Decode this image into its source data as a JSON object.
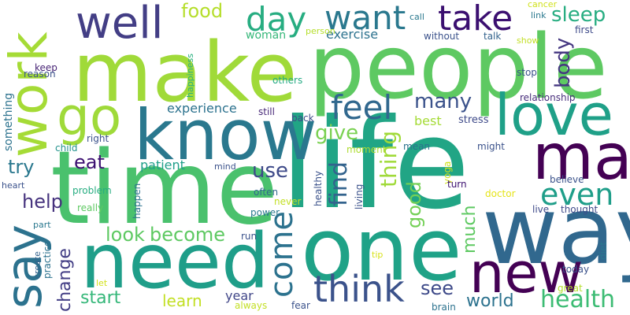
{
  "words": [
    {
      "id": "people",
      "text": "people",
      "color": "#5ec962"
    },
    {
      "id": "make",
      "text": "make",
      "color": "#a0da39"
    },
    {
      "id": "life",
      "text": "life",
      "color": "#21a585"
    },
    {
      "id": "time",
      "text": "time",
      "color": "#4ac16d"
    },
    {
      "id": "one",
      "text": "one",
      "color": "#1fa287"
    },
    {
      "id": "way",
      "text": "way",
      "color": "#31688e"
    },
    {
      "id": "need",
      "text": "need",
      "color": "#1f9e89"
    },
    {
      "id": "know",
      "text": "know",
      "color": "#2a788e"
    },
    {
      "id": "work",
      "text": "work",
      "color": "#a5db36"
    },
    {
      "id": "love",
      "text": "love",
      "color": "#1fa088"
    },
    {
      "id": "may",
      "text": "may",
      "color": "#440154"
    },
    {
      "id": "new",
      "text": "new",
      "color": "#440154"
    },
    {
      "id": "say",
      "text": "say",
      "color": "#2c728e"
    },
    {
      "id": "well",
      "text": "well",
      "color": "#433e85"
    },
    {
      "id": "go",
      "text": "go",
      "color": "#9fda3a"
    },
    {
      "id": "take",
      "text": "take",
      "color": "#3b0f70"
    },
    {
      "id": "want",
      "text": "want",
      "color": "#2a788e"
    },
    {
      "id": "day",
      "text": "day",
      "color": "#27ad81"
    },
    {
      "id": "feel",
      "text": "feel",
      "color": "#31688e"
    },
    {
      "id": "even",
      "text": "even",
      "color": "#1f9e89"
    },
    {
      "id": "think",
      "text": "think",
      "color": "#3b528b"
    },
    {
      "id": "come",
      "text": "come",
      "color": "#2c728e"
    },
    {
      "id": "health",
      "text": "health",
      "color": "#3dbc74"
    },
    {
      "id": "many",
      "text": "many",
      "color": "#3b528b"
    },
    {
      "id": "food",
      "text": "food",
      "color": "#b5de2b"
    },
    {
      "id": "sleep",
      "text": "sleep",
      "color": "#27ad81"
    },
    {
      "id": "body",
      "text": "body",
      "color": "#453781"
    },
    {
      "id": "give",
      "text": "give",
      "color": "#7ad151"
    },
    {
      "id": "find",
      "text": "find",
      "color": "#33638d"
    },
    {
      "id": "thing",
      "text": "thing",
      "color": "#a0da39"
    },
    {
      "id": "good",
      "text": "good",
      "color": "#73d056"
    },
    {
      "id": "much",
      "text": "much",
      "color": "#5ec962"
    },
    {
      "id": "use",
      "text": "use",
      "color": "#3e4a89"
    },
    {
      "id": "eat",
      "text": "eat",
      "color": "#3b0f70"
    },
    {
      "id": "try",
      "text": "try",
      "color": "#2a788e"
    },
    {
      "id": "help",
      "text": "help",
      "color": "#46337e"
    },
    {
      "id": "look",
      "text": "look",
      "color": "#5ec962"
    },
    {
      "id": "become",
      "text": "become",
      "color": "#5ec962"
    },
    {
      "id": "change",
      "text": "change",
      "color": "#433e85"
    },
    {
      "id": "start",
      "text": "start",
      "color": "#35b779"
    },
    {
      "id": "learn",
      "text": "learn",
      "color": "#c2df23"
    },
    {
      "id": "see",
      "text": "see",
      "color": "#3e4a89"
    },
    {
      "id": "world",
      "text": "world",
      "color": "#2c728e"
    },
    {
      "id": "exercise",
      "text": "exercise",
      "color": "#2c728e"
    },
    {
      "id": "woman",
      "text": "woman",
      "color": "#35b779"
    },
    {
      "id": "experience",
      "text": "experience",
      "color": "#2c728e"
    },
    {
      "id": "patient",
      "text": "patient",
      "color": "#1f9e89"
    },
    {
      "id": "best",
      "text": "best",
      "color": "#a5db36"
    },
    {
      "id": "stress",
      "text": "stress",
      "color": "#3e4a89"
    },
    {
      "id": "year",
      "text": "year",
      "color": "#404688"
    },
    {
      "id": "cancer",
      "text": "cancer",
      "color": "#d0e11c"
    },
    {
      "id": "link",
      "text": "link",
      "color": "#2a788e"
    },
    {
      "id": "call",
      "text": "call",
      "color": "#2a788e"
    },
    {
      "id": "person",
      "text": "person",
      "color": "#b5de2b"
    },
    {
      "id": "without",
      "text": "without",
      "color": "#3b528b"
    },
    {
      "id": "talk",
      "text": "talk",
      "color": "#33638d"
    },
    {
      "id": "show",
      "text": "show",
      "color": "#c2df23"
    },
    {
      "id": "first",
      "text": "first",
      "color": "#3e4a89"
    },
    {
      "id": "keep",
      "text": "keep",
      "color": "#482576"
    },
    {
      "id": "reason",
      "text": "reason",
      "color": "#3b528b"
    },
    {
      "id": "something",
      "text": "something",
      "color": "#2c728e"
    },
    {
      "id": "happiness",
      "text": "happiness",
      "color": "#2ab07f"
    },
    {
      "id": "others",
      "text": "others",
      "color": "#24aa83"
    },
    {
      "id": "stop",
      "text": "stop",
      "color": "#3b528b"
    },
    {
      "id": "relationship",
      "text": "relationship",
      "color": "#472d7b"
    },
    {
      "id": "still",
      "text": "still",
      "color": "#482878"
    },
    {
      "id": "back",
      "text": "back",
      "color": "#3e4a89"
    },
    {
      "id": "child",
      "text": "child",
      "color": "#21918c"
    },
    {
      "id": "right",
      "text": "right",
      "color": "#3b528b"
    },
    {
      "id": "moment",
      "text": "moment",
      "color": "#addc30"
    },
    {
      "id": "mean",
      "text": "mean",
      "color": "#2c728e"
    },
    {
      "id": "might",
      "text": "might",
      "color": "#3b528b"
    },
    {
      "id": "yoga",
      "text": "yoga",
      "color": "#d2e21b"
    },
    {
      "id": "believe",
      "text": "believe",
      "color": "#3b528b"
    },
    {
      "id": "turn",
      "text": "turn",
      "color": "#3b0f70"
    },
    {
      "id": "doctor",
      "text": "doctor",
      "color": "#e5e419"
    },
    {
      "id": "live",
      "text": "live",
      "color": "#3e4a89"
    },
    {
      "id": "thought",
      "text": "thought",
      "color": "#3e4a89"
    },
    {
      "id": "heart",
      "text": "heart",
      "color": "#3b528b"
    },
    {
      "id": "problem",
      "text": "problem",
      "color": "#27ad81"
    },
    {
      "id": "really",
      "text": "really",
      "color": "#5ec962"
    },
    {
      "id": "mind",
      "text": "mind",
      "color": "#3b528b"
    },
    {
      "id": "happen",
      "text": "happen",
      "color": "#2c728e"
    },
    {
      "id": "often",
      "text": "often",
      "color": "#31688e"
    },
    {
      "id": "never",
      "text": "never",
      "color": "#c2df23"
    },
    {
      "id": "healthy",
      "text": "healthy",
      "color": "#3b528b"
    },
    {
      "id": "living",
      "text": "living",
      "color": "#3b528b"
    },
    {
      "id": "power",
      "text": "power",
      "color": "#2a788e"
    },
    {
      "id": "part",
      "text": "part",
      "color": "#2a788e"
    },
    {
      "id": "create",
      "text": "create",
      "color": "#33638d"
    },
    {
      "id": "practice",
      "text": "practice",
      "color": "#2c728e"
    },
    {
      "id": "run",
      "text": "run",
      "color": "#3b528b"
    },
    {
      "id": "tip",
      "text": "tip",
      "color": "#d8e219"
    },
    {
      "id": "let",
      "text": "let",
      "color": "#d2e21b"
    },
    {
      "id": "always",
      "text": "always",
      "color": "#c2df23"
    },
    {
      "id": "fear",
      "text": "fear",
      "color": "#3b528b"
    },
    {
      "id": "brain",
      "text": "brain",
      "color": "#2c728e"
    },
    {
      "id": "great",
      "text": "great",
      "color": "#b5de2b"
    },
    {
      "id": "today",
      "text": "today",
      "color": "#3b528b"
    },
    {
      "id": "diet",
      "text": "diet",
      "color": "#2a788e"
    }
  ]
}
